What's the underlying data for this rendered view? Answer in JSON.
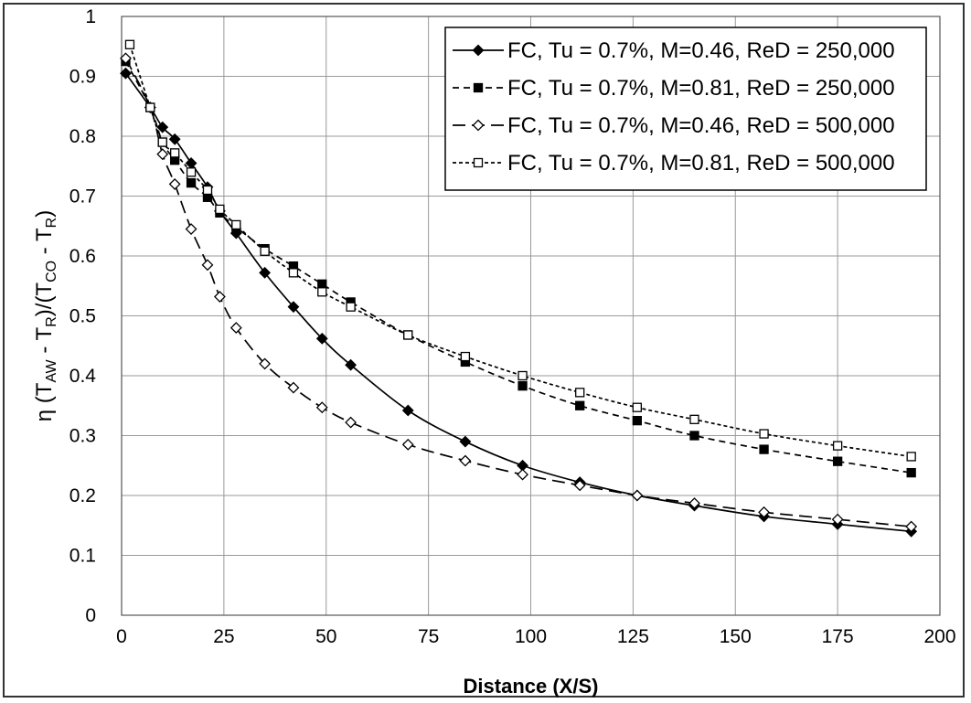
{
  "chart_data": {
    "type": "line",
    "title": "",
    "xlabel": "Distance (X/S)",
    "ylabel_parts": [
      "η (T",
      "AW",
      " - T",
      "R",
      ")/(T",
      "CO",
      " - T",
      "R",
      ")"
    ],
    "xlim": [
      0,
      200
    ],
    "ylim": [
      0,
      1
    ],
    "xticks": [
      "0",
      "25",
      "50",
      "75",
      "100",
      "125",
      "150",
      "175",
      "200"
    ],
    "yticks": [
      "0",
      "0.1",
      "0.2",
      "0.3",
      "0.4",
      "0.5",
      "0.6",
      "0.7",
      "0.8",
      "0.9",
      "1"
    ],
    "grid": true,
    "legend_position": "top-right",
    "series": [
      {
        "name": "FC, Tu = 0.7%, M=0.46, ReD = 250,000",
        "marker": "filled-diamond",
        "line": "solid",
        "x": [
          1,
          7,
          10,
          13,
          17,
          21,
          24,
          28,
          35,
          42,
          49,
          56,
          70,
          84,
          98,
          112,
          126,
          140,
          157,
          175,
          193
        ],
        "y": [
          0.905,
          0.848,
          0.815,
          0.795,
          0.755,
          0.715,
          0.675,
          0.638,
          0.572,
          0.515,
          0.462,
          0.418,
          0.342,
          0.29,
          0.25,
          0.222,
          0.2,
          0.183,
          0.165,
          0.152,
          0.14
        ]
      },
      {
        "name": "FC, Tu = 0.7%, M=0.81, ReD = 250,000",
        "marker": "filled-square",
        "line": "dash",
        "x": [
          1,
          7,
          10,
          13,
          17,
          21,
          24,
          28,
          35,
          42,
          49,
          56,
          70,
          84,
          98,
          112,
          126,
          140,
          157,
          175,
          193
        ],
        "y": [
          0.925,
          0.848,
          0.79,
          0.76,
          0.722,
          0.698,
          0.672,
          0.648,
          0.612,
          0.583,
          0.553,
          0.523,
          0.468,
          0.423,
          0.383,
          0.35,
          0.325,
          0.3,
          0.277,
          0.257,
          0.238
        ]
      },
      {
        "name": "FC, Tu = 0.7%, M=0.46, ReD = 500,000",
        "marker": "open-diamond",
        "line": "long-dash",
        "x": [
          1,
          7,
          10,
          13,
          17,
          21,
          24,
          28,
          35,
          42,
          49,
          56,
          70,
          84,
          98,
          112,
          126,
          140,
          157,
          175,
          193
        ],
        "y": [
          0.93,
          0.848,
          0.77,
          0.72,
          0.645,
          0.585,
          0.532,
          0.48,
          0.42,
          0.38,
          0.347,
          0.322,
          0.285,
          0.258,
          0.235,
          0.217,
          0.2,
          0.187,
          0.172,
          0.16,
          0.148
        ]
      },
      {
        "name": "FC, Tu = 0.7%, M=0.81, ReD = 500,000",
        "marker": "open-square",
        "line": "short-dash",
        "x": [
          2,
          7,
          10,
          13,
          17,
          21,
          24,
          28,
          35,
          42,
          49,
          56,
          70,
          84,
          98,
          112,
          126,
          140,
          157,
          175,
          193
        ],
        "y": [
          0.953,
          0.848,
          0.79,
          0.772,
          0.74,
          0.71,
          0.678,
          0.652,
          0.608,
          0.572,
          0.54,
          0.515,
          0.468,
          0.432,
          0.4,
          0.372,
          0.347,
          0.327,
          0.303,
          0.283,
          0.265
        ]
      }
    ]
  }
}
